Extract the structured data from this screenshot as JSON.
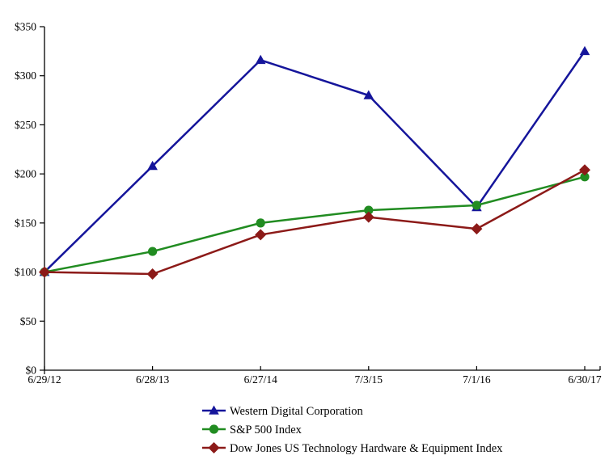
{
  "figure": {
    "background": "#ffffff",
    "axis_color": "#000000",
    "text_color": "#000000"
  },
  "chart_data": {
    "type": "line",
    "title": "",
    "xlabel": "",
    "ylabel": "",
    "x_categories": [
      "6/29/12",
      "6/28/13",
      "6/27/14",
      "7/3/15",
      "7/1/16",
      "6/30/17"
    ],
    "y_tick_labels": [
      "$0",
      "$50",
      "$100",
      "$150",
      "$200",
      "$250",
      "$300",
      "$350"
    ],
    "ylim": [
      0,
      350
    ],
    "y_tick_step": 50,
    "grid": false,
    "legend_position": "bottom-left",
    "series": [
      {
        "name": "Western Digital Corporation",
        "color": "#15159B",
        "marker": "triangle",
        "values": [
          100,
          208,
          316,
          280,
          166,
          325
        ]
      },
      {
        "name": "S&P 500 Index",
        "color": "#218C21",
        "marker": "circle",
        "values": [
          100,
          121,
          150,
          163,
          168,
          197
        ]
      },
      {
        "name": "Dow Jones US Technology Hardware & Equipment Index",
        "color": "#8C1A18",
        "marker": "diamond",
        "values": [
          100,
          98,
          138,
          156,
          144,
          204
        ]
      }
    ]
  }
}
